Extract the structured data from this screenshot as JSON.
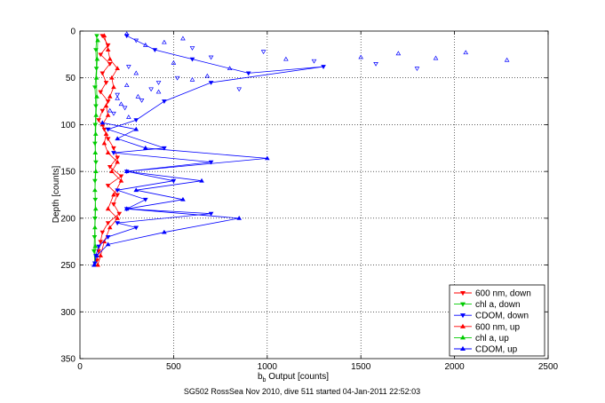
{
  "chart_data": {
    "type": "scatter",
    "title": "",
    "xlabel_main": "b",
    "xlabel_sub": "b",
    "xlabel_rest": " Output [counts]",
    "ylabel": "Depth [counts]",
    "caption": "SG502 RossSea Nov 2010, dive 511 started 04-Jan-2011 22:52:03",
    "xlim": [
      0,
      2500
    ],
    "ylim": [
      0,
      350
    ],
    "y_reversed": true,
    "grid": true,
    "legend_position": "bottom-right",
    "x_ticks": [
      "0",
      "500",
      "1000",
      "1500",
      "2000",
      "2500"
    ],
    "y_ticks": [
      "0",
      "50",
      "100",
      "150",
      "200",
      "250",
      "300",
      "350"
    ],
    "series": [
      {
        "name": "600 nm, down",
        "color": "#ff0000",
        "marker": "triangle-down",
        "connected": true,
        "points": [
          [
            120,
            5
          ],
          [
            150,
            15
          ],
          [
            110,
            25
          ],
          [
            160,
            35
          ],
          [
            120,
            45
          ],
          [
            140,
            55
          ],
          [
            110,
            65
          ],
          [
            150,
            75
          ],
          [
            120,
            85
          ],
          [
            100,
            95
          ],
          [
            130,
            105
          ],
          [
            150,
            115
          ],
          [
            180,
            125
          ],
          [
            200,
            135
          ],
          [
            160,
            145
          ],
          [
            220,
            155
          ],
          [
            150,
            165
          ],
          [
            200,
            175
          ],
          [
            180,
            185
          ],
          [
            210,
            195
          ],
          [
            150,
            205
          ],
          [
            120,
            215
          ],
          [
            110,
            225
          ],
          [
            100,
            235
          ],
          [
            90,
            245
          ]
        ]
      },
      {
        "name": "chl a, down",
        "color": "#00cc00",
        "marker": "triangle-down",
        "connected": true,
        "points": [
          [
            90,
            5
          ],
          [
            85,
            20
          ],
          [
            88,
            40
          ],
          [
            80,
            60
          ],
          [
            85,
            80
          ],
          [
            82,
            100
          ],
          [
            80,
            120
          ],
          [
            85,
            140
          ],
          [
            80,
            160
          ],
          [
            82,
            180
          ],
          [
            80,
            200
          ],
          [
            78,
            220
          ],
          [
            75,
            235
          ],
          [
            80,
            248
          ]
        ]
      },
      {
        "name": "CDOM, down",
        "color": "#0000ff",
        "marker": "triangle-down",
        "connected": true,
        "points": [
          [
            250,
            5
          ],
          [
            400,
            20
          ],
          [
            600,
            30
          ],
          [
            900,
            45
          ],
          [
            1300,
            38
          ],
          [
            700,
            55
          ],
          [
            450,
            75
          ],
          [
            300,
            95
          ],
          [
            150,
            105
          ],
          [
            450,
            125
          ],
          [
            180,
            130
          ],
          [
            700,
            140
          ],
          [
            250,
            150
          ],
          [
            500,
            160
          ],
          [
            200,
            170
          ],
          [
            350,
            180
          ],
          [
            250,
            190
          ],
          [
            700,
            195
          ],
          [
            200,
            205
          ],
          [
            300,
            210
          ],
          [
            150,
            220
          ],
          [
            100,
            230
          ],
          [
            85,
            240
          ],
          [
            80,
            248
          ]
        ]
      },
      {
        "name": "600 nm, up",
        "color": "#ff0000",
        "marker": "triangle-up",
        "connected": true,
        "points": [
          [
            95,
            250
          ],
          [
            110,
            240
          ],
          [
            130,
            225
          ],
          [
            160,
            210
          ],
          [
            200,
            200
          ],
          [
            150,
            190
          ],
          [
            180,
            175
          ],
          [
            220,
            160
          ],
          [
            170,
            150
          ],
          [
            200,
            140
          ],
          [
            150,
            130
          ],
          [
            130,
            120
          ],
          [
            140,
            110
          ],
          [
            120,
            100
          ],
          [
            150,
            90
          ],
          [
            140,
            80
          ],
          [
            160,
            70
          ],
          [
            180,
            60
          ],
          [
            170,
            50
          ],
          [
            200,
            40
          ],
          [
            160,
            30
          ],
          [
            150,
            20
          ],
          [
            130,
            5
          ]
        ]
      },
      {
        "name": "chl a, up",
        "color": "#00cc00",
        "marker": "triangle-up",
        "connected": true,
        "points": [
          [
            78,
            250
          ],
          [
            82,
            230
          ],
          [
            80,
            210
          ],
          [
            84,
            190
          ],
          [
            80,
            170
          ],
          [
            85,
            150
          ],
          [
            82,
            130
          ],
          [
            84,
            110
          ],
          [
            86,
            90
          ],
          [
            90,
            70
          ],
          [
            88,
            50
          ],
          [
            92,
            30
          ],
          [
            95,
            10
          ]
        ]
      },
      {
        "name": "CDOM, up",
        "color": "#0000ff",
        "marker": "triangle-up",
        "connected": true,
        "points": [
          [
            75,
            250
          ],
          [
            90,
            240
          ],
          [
            150,
            228
          ],
          [
            450,
            215
          ],
          [
            850,
            200
          ],
          [
            250,
            190
          ],
          [
            550,
            180
          ],
          [
            300,
            170
          ],
          [
            650,
            160
          ],
          [
            250,
            150
          ],
          [
            1000,
            136
          ],
          [
            350,
            125
          ],
          [
            200,
            115
          ],
          [
            300,
            105
          ],
          [
            120,
            98
          ]
        ]
      },
      {
        "name": "CDOM, up",
        "color": "#0000ff",
        "marker": "triangle-up",
        "connected": false,
        "points": [
          [
            160,
            85
          ],
          [
            220,
            78
          ],
          [
            310,
            70
          ],
          [
            420,
            65
          ],
          [
            250,
            58
          ],
          [
            600,
            52
          ],
          [
            300,
            45
          ],
          [
            800,
            40
          ],
          [
            500,
            34
          ],
          [
            1100,
            30
          ],
          [
            1500,
            28
          ],
          [
            1700,
            24
          ],
          [
            1900,
            29
          ],
          [
            2060,
            23
          ],
          [
            2280,
            31
          ],
          [
            350,
            15
          ],
          [
            550,
            8
          ],
          [
            250,
            3
          ],
          [
            450,
            12
          ],
          [
            680,
            48
          ],
          [
            260,
            92
          ],
          [
            200,
            72
          ]
        ]
      },
      {
        "name": "CDOM, down",
        "color": "#0000ff",
        "marker": "triangle-down",
        "connected": false,
        "points": [
          [
            180,
            88
          ],
          [
            240,
            82
          ],
          [
            330,
            74
          ],
          [
            380,
            62
          ],
          [
            520,
            50
          ],
          [
            260,
            38
          ],
          [
            700,
            28
          ],
          [
            980,
            22
          ],
          [
            1250,
            32
          ],
          [
            1580,
            35
          ],
          [
            1800,
            40
          ],
          [
            420,
            55
          ],
          [
            600,
            18
          ],
          [
            300,
            10
          ],
          [
            850,
            62
          ],
          [
            200,
            68
          ]
        ]
      }
    ]
  }
}
